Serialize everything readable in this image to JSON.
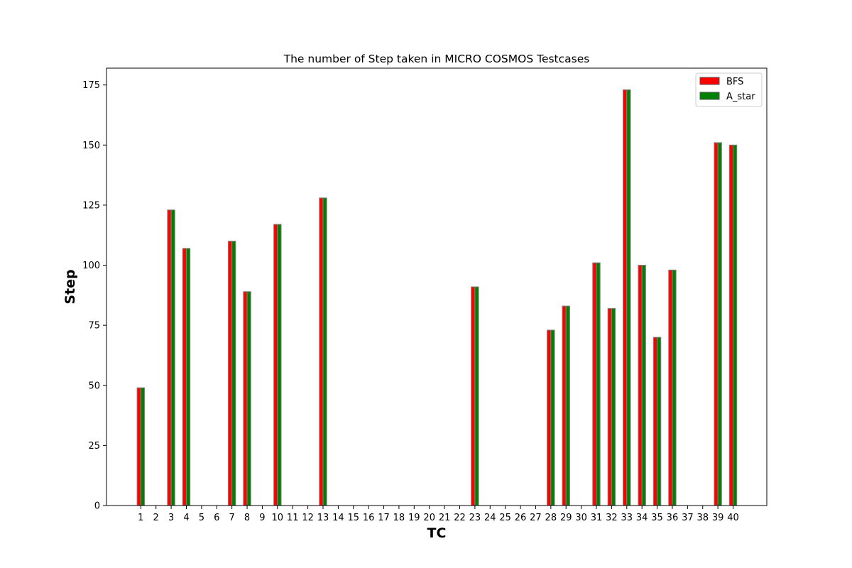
{
  "chart_data": {
    "type": "bar",
    "title": "The number of Step taken in MICRO COSMOS Testcases",
    "xlabel": "TC",
    "ylabel": "Step",
    "ylim": [
      0,
      182
    ],
    "yticks": [
      0,
      25,
      50,
      75,
      100,
      125,
      150,
      175
    ],
    "grid": false,
    "legend_position": "top-right",
    "categories": [
      "1",
      "2",
      "3",
      "4",
      "5",
      "6",
      "7",
      "8",
      "9",
      "10",
      "11",
      "12",
      "13",
      "14",
      "15",
      "16",
      "17",
      "18",
      "19",
      "20",
      "21",
      "22",
      "23",
      "24",
      "25",
      "26",
      "27",
      "28",
      "29",
      "30",
      "31",
      "32",
      "33",
      "34",
      "35",
      "36",
      "37",
      "38",
      "39",
      "40"
    ],
    "series": [
      {
        "name": "BFS",
        "color": "#ff0000",
        "values": [
          49,
          0,
          123,
          107,
          0,
          0,
          110,
          89,
          0,
          117,
          0,
          0,
          128,
          0,
          0,
          0,
          0,
          0,
          0,
          0,
          0,
          0,
          91,
          0,
          0,
          0,
          0,
          73,
          83,
          0,
          101,
          82,
          173,
          100,
          70,
          98,
          0,
          0,
          151,
          150
        ]
      },
      {
        "name": "A_star",
        "color": "#008000",
        "values": [
          49,
          0,
          123,
          107,
          0,
          0,
          110,
          89,
          0,
          117,
          0,
          0,
          128,
          0,
          0,
          0,
          0,
          0,
          0,
          0,
          0,
          0,
          91,
          0,
          0,
          0,
          0,
          73,
          83,
          0,
          101,
          82,
          173,
          100,
          70,
          98,
          0,
          0,
          151,
          150
        ]
      }
    ]
  }
}
